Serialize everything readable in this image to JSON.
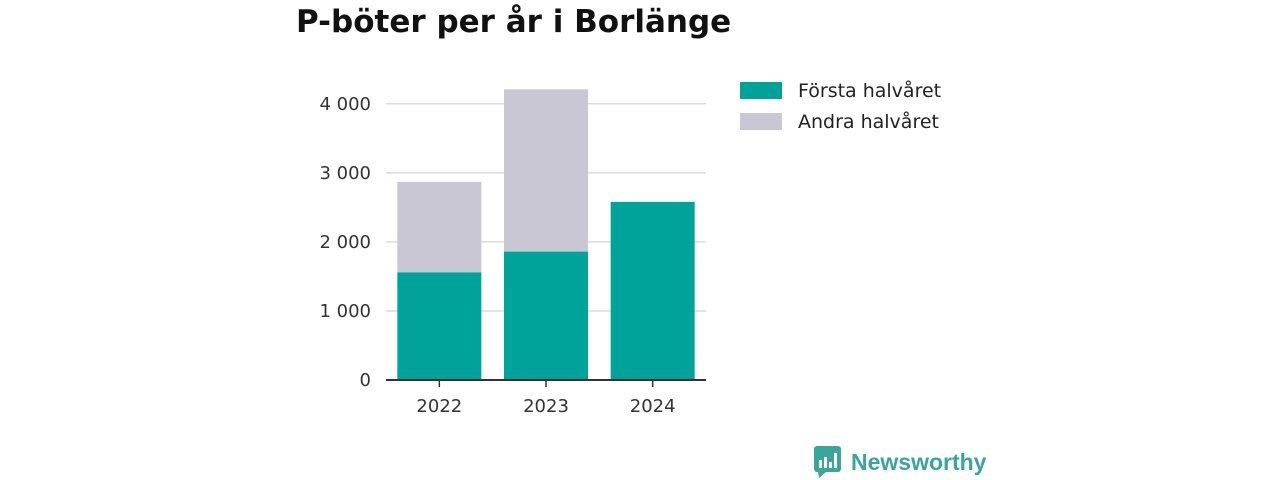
{
  "chart_data": {
    "type": "bar",
    "stacked": true,
    "title": "P-böter per år i Borlänge",
    "categories": [
      "2022",
      "2023",
      "2024"
    ],
    "series": [
      {
        "name": "Första halvåret",
        "color": "#00a39a",
        "values": [
          1560,
          1860,
          2580
        ]
      },
      {
        "name": "Andra halvåret",
        "color": "#c8c7d3",
        "values": [
          1310,
          2350,
          0
        ]
      }
    ],
    "ylim": [
      0,
      4200
    ],
    "yticks": [
      0,
      1000,
      2000,
      3000,
      4000
    ],
    "ytick_labels": [
      "0",
      "1 000",
      "2 000",
      "3 000",
      "4 000"
    ],
    "grid": true,
    "legend_position": "top-right"
  },
  "brand": {
    "name": "Newsworthy",
    "color": "#3aa59b",
    "icon": "newsworthy-logo-icon"
  }
}
